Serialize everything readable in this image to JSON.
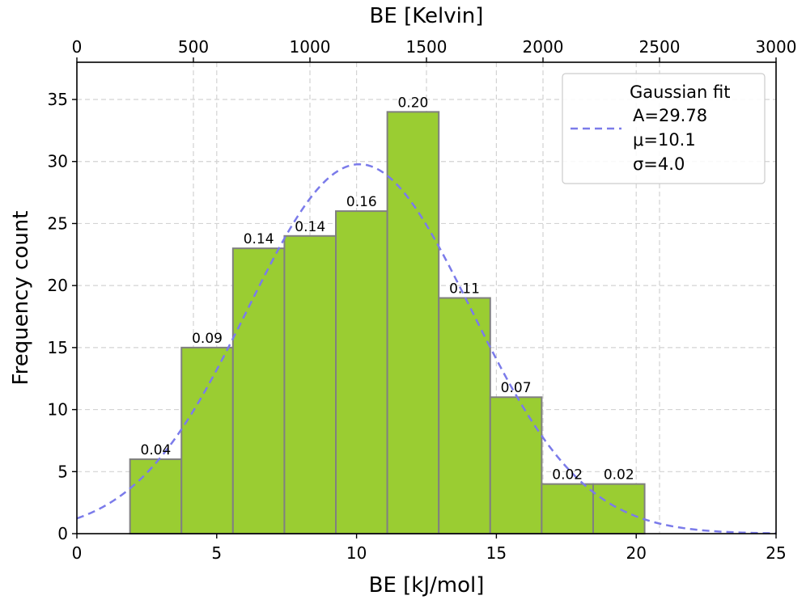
{
  "chart_data": {
    "type": "bar",
    "bars": [
      {
        "x0": 1.9,
        "x1": 3.74,
        "count": 6,
        "label": "0.04"
      },
      {
        "x0": 3.74,
        "x1": 5.58,
        "count": 15,
        "label": "0.09"
      },
      {
        "x0": 5.58,
        "x1": 7.42,
        "count": 23,
        "label": "0.14"
      },
      {
        "x0": 7.42,
        "x1": 9.26,
        "count": 24,
        "label": "0.14"
      },
      {
        "x0": 9.26,
        "x1": 11.1,
        "count": 26,
        "label": "0.16"
      },
      {
        "x0": 11.1,
        "x1": 12.94,
        "count": 34,
        "label": "0.20"
      },
      {
        "x0": 12.94,
        "x1": 14.78,
        "count": 19,
        "label": "0.11"
      },
      {
        "x0": 14.78,
        "x1": 16.62,
        "count": 11,
        "label": "0.07"
      },
      {
        "x0": 16.62,
        "x1": 18.46,
        "count": 4,
        "label": "0.02"
      },
      {
        "x0": 18.46,
        "x1": 20.3,
        "count": 4,
        "label": "0.02"
      }
    ],
    "fit": {
      "A": 29.78,
      "mu": 10.1,
      "sigma": 4.0
    },
    "xlabel": "BE [kJ/mol]",
    "ylabel": "Frequency count",
    "top_xlabel": "BE [Kelvin]",
    "xlim": [
      0,
      25
    ],
    "ylim": [
      0,
      38
    ],
    "top_xlim": [
      0,
      3000
    ],
    "xticks": [
      0,
      5,
      10,
      15,
      20,
      25
    ],
    "yticks": [
      0,
      5,
      10,
      15,
      20,
      25,
      30,
      35
    ],
    "top_xticks": [
      0,
      500,
      1000,
      1500,
      2000,
      2500,
      3000
    ],
    "grid": true,
    "legend": {
      "placement": "top-right",
      "lines": [
        "Gaussian fit",
        "A=29.78",
        "μ=10.1",
        "σ=4.0"
      ]
    },
    "colors": {
      "bar_fill": "#9acd32",
      "bar_edge": "#808080",
      "fit_line": "#7b7bea",
      "grid": "#d3d3d3"
    }
  }
}
